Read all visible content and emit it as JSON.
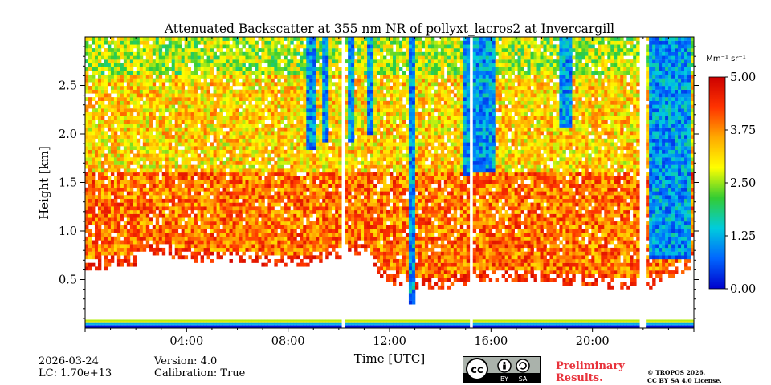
{
  "chart_data": {
    "type": "heatmap",
    "title": "Attenuated Backscatter at 355 nm NR of pollyxt_lacros2 at Invercargill",
    "xlabel": "Time [UTC]",
    "ylabel": "Height [km]",
    "xlim_hours": [
      0,
      24
    ],
    "ylim_km": [
      0,
      3.0
    ],
    "x_ticks": [
      {
        "value": 4,
        "label": "04:00"
      },
      {
        "value": 8,
        "label": "08:00"
      },
      {
        "value": 12,
        "label": "12:00"
      },
      {
        "value": 16,
        "label": "16:00"
      },
      {
        "value": 20,
        "label": "20:00"
      }
    ],
    "y_ticks": [
      {
        "value": 0.5,
        "label": "0.5"
      },
      {
        "value": 1.0,
        "label": "1.0"
      },
      {
        "value": 1.5,
        "label": "1.5"
      },
      {
        "value": 2.0,
        "label": "2.0"
      },
      {
        "value": 2.5,
        "label": "2.5"
      }
    ],
    "colorbar": {
      "unit_label": "Mm⁻¹ sr⁻¹",
      "range": [
        0,
        5
      ],
      "ticks": [
        {
          "value": 0,
          "label": "0.00"
        },
        {
          "value": 1.25,
          "label": "1.25"
        },
        {
          "value": 2.5,
          "label": "2.50"
        },
        {
          "value": 3.75,
          "label": "3.75"
        },
        {
          "value": 5,
          "label": "5.00"
        }
      ],
      "colors": [
        "#0000cc",
        "#0066ff",
        "#00ccdd",
        "#33cc33",
        "#ffff00",
        "#ffaa00",
        "#ff3300",
        "#cc0000"
      ]
    },
    "aerosol_layer_top_km": [
      {
        "t": 0,
        "top": 0.72
      },
      {
        "t": 1.9,
        "top": 0.75
      },
      {
        "t": 2.3,
        "top": 0.9
      },
      {
        "t": 4.5,
        "top": 0.8
      },
      {
        "t": 8.5,
        "top": 0.75
      },
      {
        "t": 11.0,
        "top": 0.9
      },
      {
        "t": 11.8,
        "top": 0.6
      },
      {
        "t": 13.5,
        "top": 0.5
      },
      {
        "t": 16.0,
        "top": 0.6
      },
      {
        "t": 20.0,
        "top": 0.55
      },
      {
        "t": 22.0,
        "top": 0.5
      },
      {
        "t": 24.0,
        "top": 0.75
      }
    ],
    "cloud_columns": [
      {
        "start": 8.75,
        "end": 9.05,
        "base_km": 1.85
      },
      {
        "start": 9.35,
        "end": 9.6,
        "base_km": 1.9
      },
      {
        "start": 10.35,
        "end": 10.55,
        "base_km": 1.9
      },
      {
        "start": 11.1,
        "end": 11.35,
        "base_km": 2.0
      },
      {
        "start": 12.75,
        "end": 12.95,
        "base_km": 0.25
      },
      {
        "start": 14.95,
        "end": 15.1,
        "base_km": 1.55
      },
      {
        "start": 15.3,
        "end": 16.2,
        "base_km": 1.6
      },
      {
        "start": 18.75,
        "end": 19.15,
        "base_km": 2.05
      },
      {
        "start": 21.95,
        "end": 22.05,
        "base_km": 0.6
      },
      {
        "start": 22.2,
        "end": 23.9,
        "base_km": 0.7
      }
    ],
    "data_gaps_hours": [
      {
        "start": 10.05,
        "end": 10.2
      },
      {
        "start": 15.1,
        "end": 15.25
      },
      {
        "start": 21.9,
        "end": 22.05
      }
    ]
  },
  "footer": {
    "date": "2026-03-24",
    "lc": "LC: 1.70e+13",
    "version": "Version: 4.0",
    "calibration": "Calibration: True",
    "preliminary": "Preliminary",
    "results": "Results.",
    "copyright": "© TROPOS 2026.",
    "license": "CC BY SA 4.0 License.",
    "cc_badge": {
      "cc": "cc",
      "by": "BY",
      "sa": "SA"
    }
  }
}
